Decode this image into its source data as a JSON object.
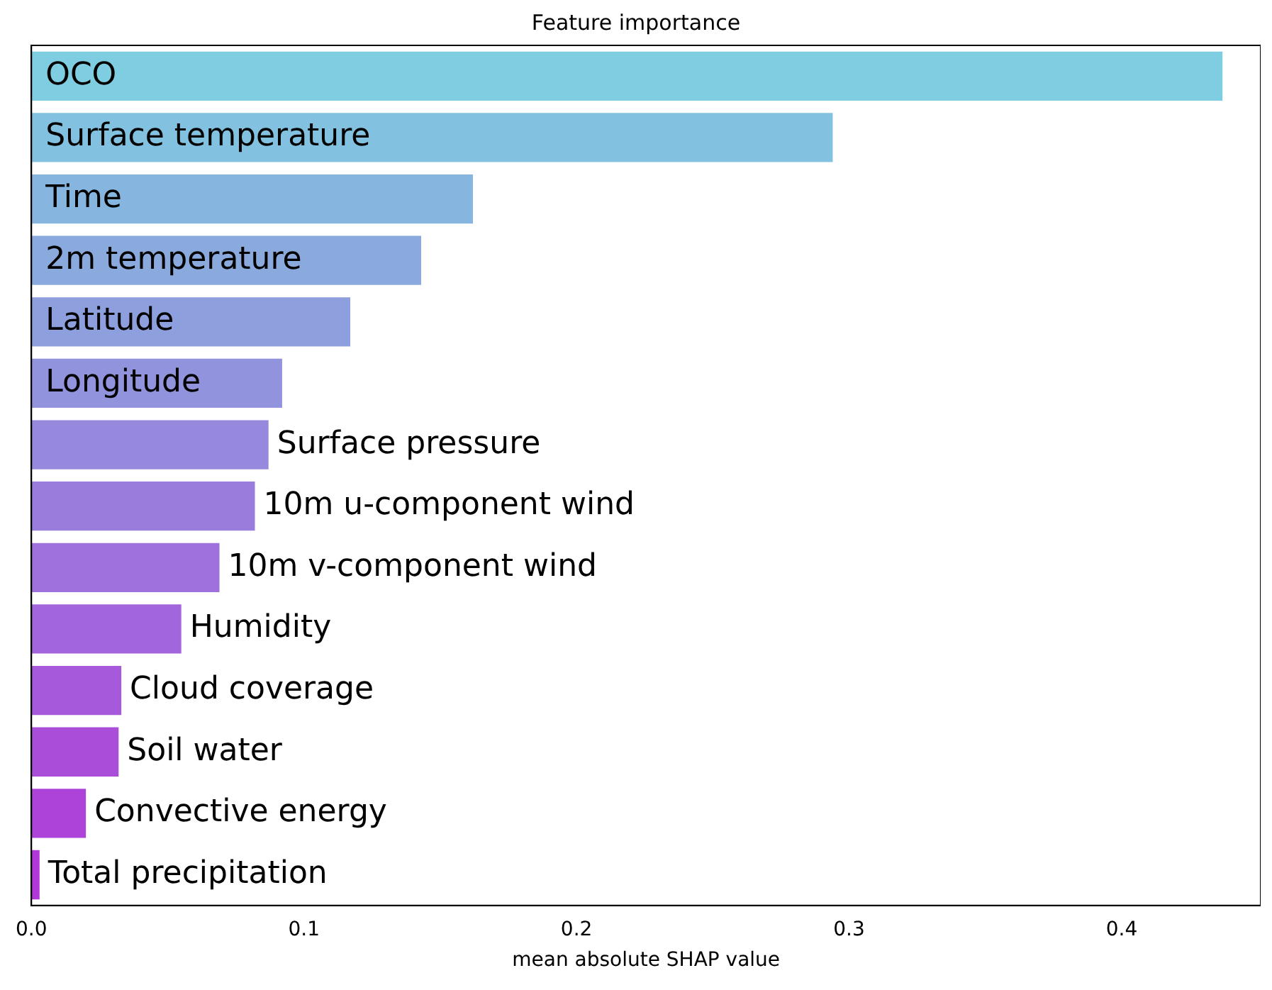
{
  "chart_data": {
    "type": "bar",
    "orientation": "horizontal",
    "title": "Feature importance",
    "xlabel": "mean absolute SHAP value",
    "categories": [
      "OCO",
      "Surface temperature",
      "Time",
      "2m temperature",
      "Latitude",
      "Longitude",
      "Surface pressure",
      "10m u-component wind",
      "10m v-component wind",
      "Humidity",
      "Cloud coverage",
      "Soil water",
      "Convective energy",
      "Total precipitation"
    ],
    "values": [
      0.437,
      0.294,
      0.162,
      0.143,
      0.117,
      0.092,
      0.087,
      0.082,
      0.069,
      0.055,
      0.033,
      0.032,
      0.02,
      0.003
    ],
    "colors": [
      "#7fcde0",
      "#82c1df",
      "#86b6df",
      "#8aaade",
      "#8e9fde",
      "#9293dd",
      "#9688dd",
      "#9a7cdc",
      "#9e71dc",
      "#a265db",
      "#a65adb",
      "#aa4eda",
      "#ae43da",
      "#b237d9"
    ],
    "xlim": [
      0,
      0.451
    ],
    "xticks": [
      {
        "value": 0,
        "label": "0.0"
      },
      0.1,
      0.2,
      0.3,
      0.4
    ],
    "tick_labels": "x",
    "grid": false,
    "legend": false
  }
}
